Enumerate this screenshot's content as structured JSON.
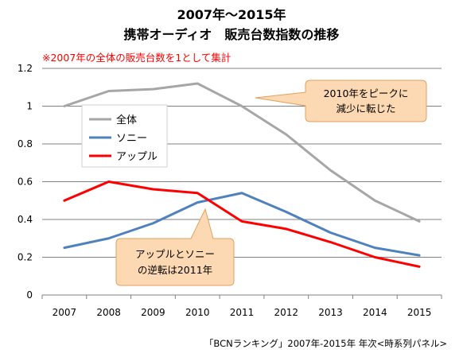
{
  "chart_data": {
    "type": "line",
    "title_line1": "2007年～2015年",
    "title_line2": "携帯オーディオ　販売台数指数の推移",
    "note": "※2007年の全体の販売台数を1として集計",
    "categories": [
      "2007",
      "2008",
      "2009",
      "2010",
      "2011",
      "2012",
      "2013",
      "2014",
      "2015"
    ],
    "series": [
      {
        "name": "全体",
        "color": "#a6a6a6",
        "values": [
          1.0,
          1.08,
          1.09,
          1.12,
          1.0,
          0.85,
          0.66,
          0.5,
          0.39
        ]
      },
      {
        "name": "ソニー",
        "color": "#4f81bd",
        "values": [
          0.25,
          0.3,
          0.38,
          0.49,
          0.54,
          0.44,
          0.33,
          0.25,
          0.21
        ]
      },
      {
        "name": "アップル",
        "color": "#ff0000",
        "values": [
          0.5,
          0.6,
          0.56,
          0.54,
          0.39,
          0.35,
          0.28,
          0.2,
          0.15
        ]
      }
    ],
    "yticks": [
      "0",
      "0.2",
      "0.4",
      "0.6",
      "0.8",
      "1",
      "1.2"
    ],
    "ylim": [
      0,
      1.2
    ],
    "grid": true,
    "legend_position": "upper-left",
    "callouts": [
      {
        "lines": [
          "2010年をピークに",
          "減少に転じた"
        ]
      },
      {
        "lines": [
          "アップルとソニー",
          "の逆転は2011年"
        ]
      }
    ],
    "source": "「BCNランキング」2007年-2015年 年次<時系列パネル>"
  }
}
